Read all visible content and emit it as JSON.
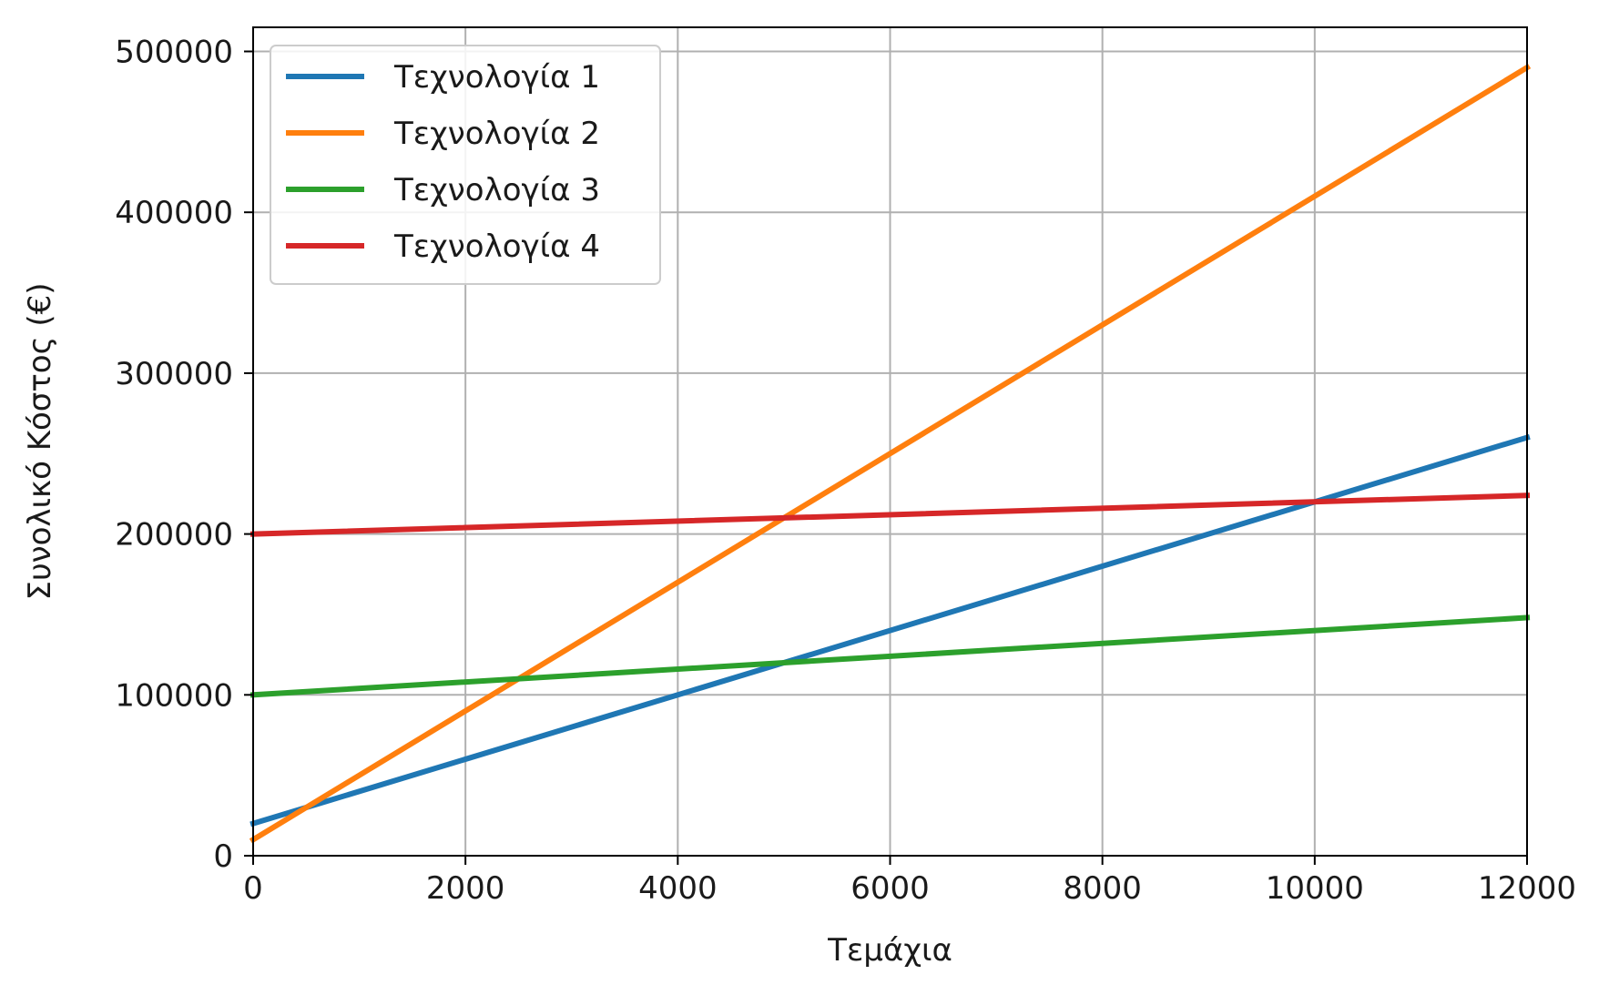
{
  "chart_data": {
    "type": "line",
    "title": "",
    "xlabel": "Τεμάχια",
    "ylabel": "Συνολικό Κόστος (€)",
    "xlim": [
      0,
      12000
    ],
    "ylim": [
      0,
      515000
    ],
    "xticks": [
      0,
      2000,
      4000,
      6000,
      8000,
      10000,
      12000
    ],
    "yticks": [
      0,
      100000,
      200000,
      300000,
      400000,
      500000
    ],
    "grid": true,
    "legend_position": "top-left",
    "x": [
      0,
      12000
    ],
    "series": [
      {
        "name": "Τεχνολογία 1",
        "color": "#1f77b4",
        "values": [
          20000,
          260000
        ]
      },
      {
        "name": "Τεχνολογία 2",
        "color": "#ff7f0e",
        "values": [
          10000,
          490000
        ]
      },
      {
        "name": "Τεχνολογία 3",
        "color": "#2ca02c",
        "values": [
          100000,
          148000
        ]
      },
      {
        "name": "Τεχνολογία 4",
        "color": "#d62728",
        "values": [
          200000,
          224000
        ]
      }
    ]
  }
}
